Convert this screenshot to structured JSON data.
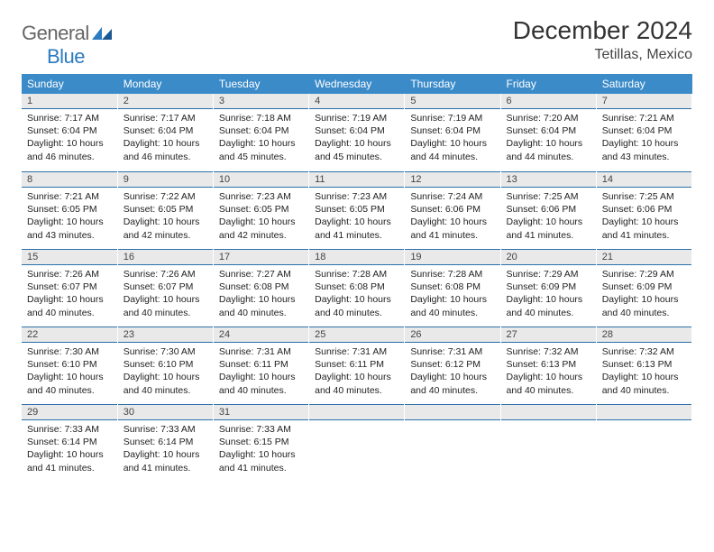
{
  "logo": {
    "text1": "General",
    "text2": "Blue"
  },
  "title": "December 2024",
  "location": "Tetillas, Mexico",
  "colors": {
    "header_bg": "#3b8bc9",
    "header_text": "#ffffff",
    "daynum_bg": "#e9e9e9",
    "border": "#2b6fa8",
    "logo_gray": "#666666",
    "logo_blue": "#2b7bbf"
  },
  "day_labels": [
    "Sunday",
    "Monday",
    "Tuesday",
    "Wednesday",
    "Thursday",
    "Friday",
    "Saturday"
  ],
  "weeks": [
    [
      {
        "n": "1",
        "sr": "7:17 AM",
        "ss": "6:04 PM",
        "dl": "10 hours and 46 minutes."
      },
      {
        "n": "2",
        "sr": "7:17 AM",
        "ss": "6:04 PM",
        "dl": "10 hours and 46 minutes."
      },
      {
        "n": "3",
        "sr": "7:18 AM",
        "ss": "6:04 PM",
        "dl": "10 hours and 45 minutes."
      },
      {
        "n": "4",
        "sr": "7:19 AM",
        "ss": "6:04 PM",
        "dl": "10 hours and 45 minutes."
      },
      {
        "n": "5",
        "sr": "7:19 AM",
        "ss": "6:04 PM",
        "dl": "10 hours and 44 minutes."
      },
      {
        "n": "6",
        "sr": "7:20 AM",
        "ss": "6:04 PM",
        "dl": "10 hours and 44 minutes."
      },
      {
        "n": "7",
        "sr": "7:21 AM",
        "ss": "6:04 PM",
        "dl": "10 hours and 43 minutes."
      }
    ],
    [
      {
        "n": "8",
        "sr": "7:21 AM",
        "ss": "6:05 PM",
        "dl": "10 hours and 43 minutes."
      },
      {
        "n": "9",
        "sr": "7:22 AM",
        "ss": "6:05 PM",
        "dl": "10 hours and 42 minutes."
      },
      {
        "n": "10",
        "sr": "7:23 AM",
        "ss": "6:05 PM",
        "dl": "10 hours and 42 minutes."
      },
      {
        "n": "11",
        "sr": "7:23 AM",
        "ss": "6:05 PM",
        "dl": "10 hours and 41 minutes."
      },
      {
        "n": "12",
        "sr": "7:24 AM",
        "ss": "6:06 PM",
        "dl": "10 hours and 41 minutes."
      },
      {
        "n": "13",
        "sr": "7:25 AM",
        "ss": "6:06 PM",
        "dl": "10 hours and 41 minutes."
      },
      {
        "n": "14",
        "sr": "7:25 AM",
        "ss": "6:06 PM",
        "dl": "10 hours and 41 minutes."
      }
    ],
    [
      {
        "n": "15",
        "sr": "7:26 AM",
        "ss": "6:07 PM",
        "dl": "10 hours and 40 minutes."
      },
      {
        "n": "16",
        "sr": "7:26 AM",
        "ss": "6:07 PM",
        "dl": "10 hours and 40 minutes."
      },
      {
        "n": "17",
        "sr": "7:27 AM",
        "ss": "6:08 PM",
        "dl": "10 hours and 40 minutes."
      },
      {
        "n": "18",
        "sr": "7:28 AM",
        "ss": "6:08 PM",
        "dl": "10 hours and 40 minutes."
      },
      {
        "n": "19",
        "sr": "7:28 AM",
        "ss": "6:08 PM",
        "dl": "10 hours and 40 minutes."
      },
      {
        "n": "20",
        "sr": "7:29 AM",
        "ss": "6:09 PM",
        "dl": "10 hours and 40 minutes."
      },
      {
        "n": "21",
        "sr": "7:29 AM",
        "ss": "6:09 PM",
        "dl": "10 hours and 40 minutes."
      }
    ],
    [
      {
        "n": "22",
        "sr": "7:30 AM",
        "ss": "6:10 PM",
        "dl": "10 hours and 40 minutes."
      },
      {
        "n": "23",
        "sr": "7:30 AM",
        "ss": "6:10 PM",
        "dl": "10 hours and 40 minutes."
      },
      {
        "n": "24",
        "sr": "7:31 AM",
        "ss": "6:11 PM",
        "dl": "10 hours and 40 minutes."
      },
      {
        "n": "25",
        "sr": "7:31 AM",
        "ss": "6:11 PM",
        "dl": "10 hours and 40 minutes."
      },
      {
        "n": "26",
        "sr": "7:31 AM",
        "ss": "6:12 PM",
        "dl": "10 hours and 40 minutes."
      },
      {
        "n": "27",
        "sr": "7:32 AM",
        "ss": "6:13 PM",
        "dl": "10 hours and 40 minutes."
      },
      {
        "n": "28",
        "sr": "7:32 AM",
        "ss": "6:13 PM",
        "dl": "10 hours and 40 minutes."
      }
    ],
    [
      {
        "n": "29",
        "sr": "7:33 AM",
        "ss": "6:14 PM",
        "dl": "10 hours and 41 minutes."
      },
      {
        "n": "30",
        "sr": "7:33 AM",
        "ss": "6:14 PM",
        "dl": "10 hours and 41 minutes."
      },
      {
        "n": "31",
        "sr": "7:33 AM",
        "ss": "6:15 PM",
        "dl": "10 hours and 41 minutes."
      },
      null,
      null,
      null,
      null
    ]
  ],
  "labels": {
    "sunrise": "Sunrise:",
    "sunset": "Sunset:",
    "daylight": "Daylight:"
  }
}
